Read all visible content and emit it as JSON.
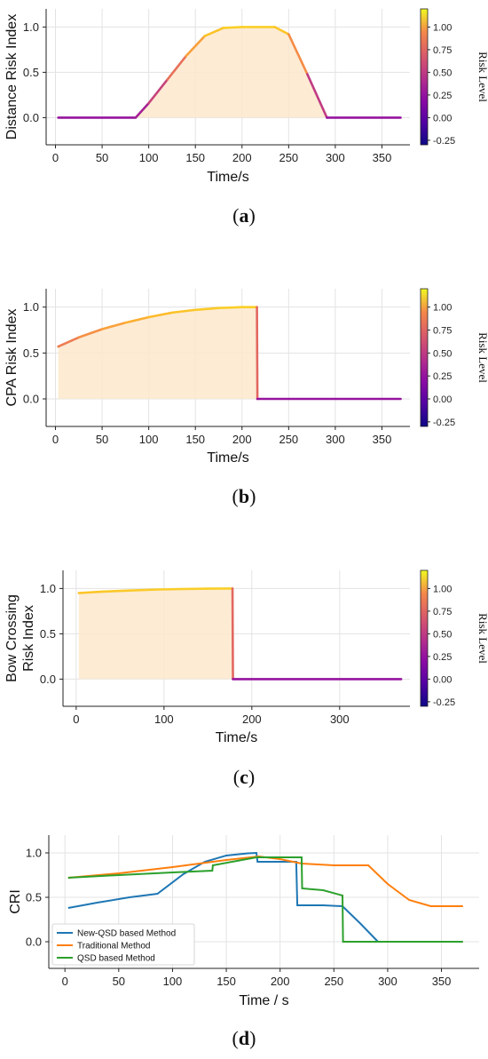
{
  "chart_data": [
    {
      "type": "area",
      "caption": "(a)",
      "xlabel": "Time/s",
      "ylabel": "Distance Risk Index",
      "xlim": [
        -10,
        380
      ],
      "ylim": [
        -0.3,
        1.2
      ],
      "xticks": [
        0,
        50,
        100,
        150,
        200,
        250,
        300,
        350
      ],
      "yticks": [
        0.0,
        0.5,
        1.0
      ],
      "grid": true,
      "colorbar": {
        "label": "Risk Level",
        "range": [
          -0.3,
          1.2
        ],
        "ticks": [
          -0.25,
          0.0,
          0.25,
          0.5,
          0.75,
          1.0
        ]
      },
      "x": [
        3,
        86,
        100,
        120,
        140,
        160,
        180,
        200,
        220,
        235,
        250,
        270,
        291,
        370
      ],
      "y": [
        0,
        0,
        0.16,
        0.42,
        0.68,
        0.9,
        0.99,
        1.0,
        1.0,
        1.0,
        0.92,
        0.48,
        0,
        0
      ]
    },
    {
      "type": "area",
      "caption": "(b)",
      "xlabel": "Time/s",
      "ylabel": "CPA Risk Index",
      "xlim": [
        -10,
        380
      ],
      "ylim": [
        -0.3,
        1.2
      ],
      "xticks": [
        0,
        50,
        100,
        150,
        200,
        250,
        300,
        350
      ],
      "yticks": [
        0.0,
        0.5,
        1.0
      ],
      "grid": true,
      "colorbar": {
        "label": "Risk Level",
        "range": [
          -0.3,
          1.2
        ],
        "ticks": [
          -0.25,
          0.0,
          0.25,
          0.5,
          0.75,
          1.0
        ]
      },
      "x": [
        3,
        25,
        50,
        75,
        100,
        125,
        150,
        175,
        200,
        216,
        216.5,
        370
      ],
      "y": [
        0.57,
        0.67,
        0.76,
        0.83,
        0.89,
        0.94,
        0.97,
        0.99,
        1.0,
        1.0,
        0,
        0
      ]
    },
    {
      "type": "area",
      "caption": "(c)",
      "xlabel": "Time/s",
      "ylabel": [
        "Bow Crossing",
        "Risk Index"
      ],
      "xlim": [
        -15,
        380
      ],
      "ylim": [
        -0.3,
        1.2
      ],
      "xticks": [
        0,
        100,
        200,
        300
      ],
      "yticks": [
        0.0,
        0.5,
        1.0
      ],
      "grid": true,
      "colorbar": {
        "label": "Risk Level",
        "range": [
          -0.3,
          1.2
        ],
        "ticks": [
          -0.25,
          0.0,
          0.25,
          0.5,
          0.75,
          1.0
        ]
      },
      "x": [
        3,
        30,
        60,
        90,
        120,
        150,
        178,
        178.5,
        370
      ],
      "y": [
        0.95,
        0.965,
        0.978,
        0.988,
        0.994,
        0.998,
        1.0,
        0,
        0
      ]
    },
    {
      "type": "line",
      "caption": "(d)",
      "xlabel": "Time / s",
      "ylabel": "CRI",
      "xlim": [
        -15,
        385
      ],
      "ylim": [
        -0.3,
        1.2
      ],
      "xticks": [
        0,
        50,
        100,
        150,
        200,
        250,
        300,
        350
      ],
      "yticks": [
        0.0,
        0.5,
        1.0
      ],
      "grid": true,
      "legend": "lower-left",
      "series": [
        {
          "name": "New-QSD based Method",
          "color": "#1f77b4",
          "x": [
            3,
            30,
            60,
            86,
            110,
            130,
            150,
            170,
            178,
            179,
            215,
            216,
            240,
            258,
            275,
            291
          ],
          "y": [
            0.38,
            0.44,
            0.5,
            0.54,
            0.76,
            0.9,
            0.97,
            0.995,
            1.0,
            0.9,
            0.9,
            0.41,
            0.41,
            0.4,
            0.2,
            0.0
          ]
        },
        {
          "name": "Traditional Method",
          "color": "#ff7f0e",
          "x": [
            3,
            50,
            100,
            150,
            180,
            200,
            220,
            250,
            282,
            300,
            320,
            340,
            370
          ],
          "y": [
            0.72,
            0.77,
            0.84,
            0.92,
            0.96,
            0.93,
            0.88,
            0.86,
            0.86,
            0.65,
            0.47,
            0.4,
            0.4
          ]
        },
        {
          "name": "QSD based Method",
          "color": "#2ca02c",
          "x": [
            3,
            50,
            100,
            137,
            137.5,
            160,
            178,
            220,
            220.5,
            240,
            258,
            258.5,
            370
          ],
          "y": [
            0.72,
            0.75,
            0.78,
            0.8,
            0.86,
            0.91,
            0.95,
            0.95,
            0.6,
            0.58,
            0.52,
            0.0,
            0.0
          ]
        }
      ]
    }
  ]
}
